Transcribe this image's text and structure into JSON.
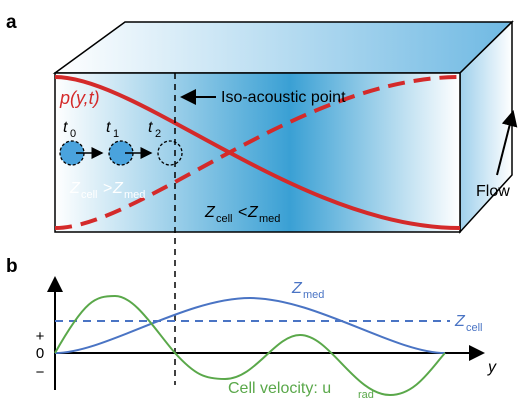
{
  "panel_a": {
    "label": "a",
    "pressure_label": "p(y,t)",
    "iso_label": "Iso-acoustic point",
    "flow_label": "Flow",
    "times": [
      "t",
      "0",
      "t",
      "1",
      "t",
      "2"
    ],
    "zcell_gt": {
      "z1": "Z",
      "s1": "cell",
      "op": ">",
      "z2": "Z",
      "s2": "med"
    },
    "zcell_lt": {
      "z1": "Z",
      "s1": "cell",
      "op": "<",
      "z2": "Z",
      "s2": "med"
    },
    "colors": {
      "pressure": "#d42a2a",
      "channel": "#3aa0d4",
      "cell": "#4aa3dd"
    }
  },
  "panel_b": {
    "label": "b",
    "plus": "+",
    "zero": "0",
    "minus": "−",
    "y_label": "y",
    "zmed": {
      "z": "Z",
      "sub": "med"
    },
    "zcell": {
      "z": "Z",
      "sub": "cell"
    },
    "velocity": {
      "text": "Cell velocity: u",
      "sub": "rad"
    },
    "colors": {
      "zmed": "#4a74c4",
      "zcell": "#4a74c4",
      "velocity": "#5aa84a"
    }
  }
}
